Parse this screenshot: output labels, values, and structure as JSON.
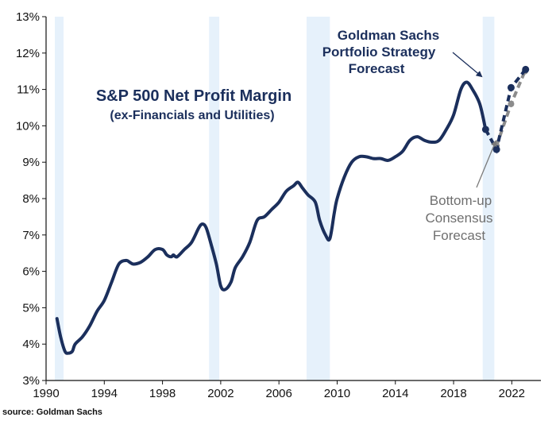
{
  "chart_data": {
    "type": "line",
    "title": "S&P 500 Net Profit Margin",
    "subtitle": "(ex-Financials and Utilities)",
    "xlim": [
      1990,
      2024
    ],
    "ylim": [
      3,
      13
    ],
    "x_ticks": [
      1990,
      1994,
      1998,
      2002,
      2006,
      2010,
      2014,
      2018,
      2022
    ],
    "y_ticks": [
      {
        "value": 3,
        "label": "3%"
      },
      {
        "value": 4,
        "label": "4%"
      },
      {
        "value": 5,
        "label": "5%"
      },
      {
        "value": 6,
        "label": "6%"
      },
      {
        "value": 7,
        "label": "7%"
      },
      {
        "value": 8,
        "label": "8%"
      },
      {
        "value": 9,
        "label": "9%"
      },
      {
        "value": 10,
        "label": "10%"
      },
      {
        "value": 11,
        "label": "11%"
      },
      {
        "value": 12,
        "label": "12%"
      },
      {
        "value": 13,
        "label": "13%"
      }
    ],
    "grid": false,
    "recessions": [
      [
        1990.6,
        1991.2
      ],
      [
        2001.2,
        2001.9
      ],
      [
        2007.9,
        2009.5
      ],
      [
        2020.0,
        2020.8
      ]
    ],
    "series": [
      {
        "name": "",
        "color": "#1b2f5c",
        "x": [
          1990.75,
          1991.0,
          1991.3,
          1991.5,
          1991.8,
          1992.0,
          1992.5,
          1993.0,
          1993.5,
          1994.0,
          1994.5,
          1995.0,
          1995.5,
          1995.75,
          1996.0,
          1996.5,
          1997.0,
          1997.5,
          1998.0,
          1998.3,
          1998.6,
          1998.75,
          1999.0,
          1999.5,
          2000.0,
          2000.5,
          2000.75,
          2001.0,
          2001.3,
          2001.7,
          2002.0,
          2002.3,
          2002.7,
          2003.0,
          2003.5,
          2004.0,
          2004.5,
          2005.0,
          2005.5,
          2006.0,
          2006.5,
          2007.0,
          2007.3,
          2007.6,
          2008.0,
          2008.5,
          2008.8,
          2009.2,
          2009.5,
          2009.8,
          2010.0,
          2010.5,
          2011.0,
          2011.5,
          2012.0,
          2012.5,
          2013.0,
          2013.5,
          2014.0,
          2014.5,
          2015.0,
          2015.5,
          2016.0,
          2016.5,
          2017.0,
          2017.5,
          2018.0,
          2018.5,
          2018.9,
          2019.3,
          2019.8,
          2020.2
        ],
        "y": [
          4.7,
          4.2,
          3.8,
          3.75,
          3.8,
          4.0,
          4.2,
          4.5,
          4.9,
          5.2,
          5.7,
          6.2,
          6.3,
          6.25,
          6.2,
          6.25,
          6.4,
          6.6,
          6.6,
          6.45,
          6.4,
          6.45,
          6.4,
          6.6,
          6.8,
          7.2,
          7.3,
          7.2,
          6.8,
          6.2,
          5.6,
          5.5,
          5.7,
          6.1,
          6.4,
          6.8,
          7.4,
          7.5,
          7.7,
          7.9,
          8.2,
          8.35,
          8.45,
          8.3,
          8.1,
          7.9,
          7.4,
          7.0,
          6.9,
          7.6,
          8.0,
          8.6,
          9.0,
          9.15,
          9.15,
          9.1,
          9.1,
          9.05,
          9.15,
          9.3,
          9.6,
          9.7,
          9.6,
          9.55,
          9.6,
          9.9,
          10.3,
          11.0,
          11.2,
          11.0,
          10.6,
          9.9
        ]
      }
    ],
    "forecasts": [
      {
        "name": "Goldman Sachs Portfolio Strategy Forecast",
        "color": "#1b2f5c",
        "x": [
          2020.2,
          2020.95,
          2021.95,
          2022.95
        ],
        "y": [
          9.9,
          9.35,
          11.05,
          11.55
        ]
      },
      {
        "name": "Bottom-up Consensus Forecast",
        "color": "#8c8c8c",
        "x": [
          2020.95,
          2021.95,
          2022.9
        ],
        "y": [
          9.45,
          10.6,
          11.5
        ]
      }
    ],
    "annotations": {
      "gs_lines": [
        "Goldman Sachs",
        "Portfolio Strategy",
        "Forecast"
      ],
      "bu_lines": [
        "Bottom-up",
        "Consensus",
        "Forecast"
      ]
    }
  },
  "source": "source: Goldman Sachs"
}
